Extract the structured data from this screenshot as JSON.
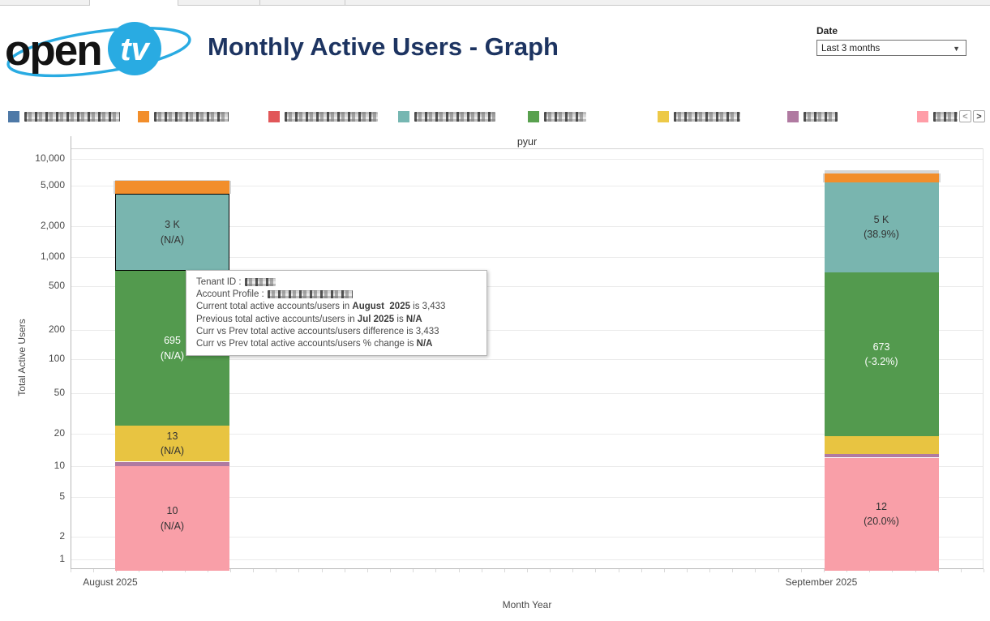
{
  "header": {
    "logo": {
      "text_open": "open",
      "text_tv": "tv"
    },
    "title": "Monthly Active Users - Graph",
    "date_filter": {
      "label": "Date",
      "value": "Last 3 months"
    }
  },
  "legend": {
    "items": [
      {
        "series": "blue",
        "color": "#4e79a7",
        "redacted_label": true,
        "label_width": 118
      },
      {
        "series": "orange",
        "color": "#f28e2b",
        "redacted_label": true,
        "label_width": 92
      },
      {
        "series": "red",
        "color": "#e15759",
        "redacted_label": true,
        "label_width": 115
      },
      {
        "series": "teal",
        "color": "#76b7b2",
        "redacted_label": true,
        "label_width": 100
      },
      {
        "series": "green",
        "color": "#59a14f",
        "redacted_label": true,
        "label_width": 52
      },
      {
        "series": "yellow",
        "color": "#edc948",
        "redacted_label": true,
        "label_width": 82
      },
      {
        "series": "purple",
        "color": "#b07aa1",
        "redacted_label": true,
        "label_width": 42
      },
      {
        "series": "pink",
        "color": "#ff9da7",
        "redacted_label": true,
        "label_width": 30
      }
    ],
    "prev_icon": "<",
    "next_icon": ">"
  },
  "chart_data": {
    "type": "bar",
    "stacked": true,
    "y_scale": "log",
    "grid": true,
    "title": "pyur",
    "xlabel": "Month Year",
    "ylabel": "Total Active Users",
    "ylim": [
      1,
      10000
    ],
    "y_ticks": [
      {
        "value": 1,
        "label": "1"
      },
      {
        "value": 2,
        "label": "2"
      },
      {
        "value": 5,
        "label": "5"
      },
      {
        "value": 10,
        "label": "10"
      },
      {
        "value": 20,
        "label": "20"
      },
      {
        "value": 50,
        "label": "50"
      },
      {
        "value": 100,
        "label": "100"
      },
      {
        "value": 200,
        "label": "200"
      },
      {
        "value": 500,
        "label": "500"
      },
      {
        "value": 1000,
        "label": "1,000"
      },
      {
        "value": 2000,
        "label": "2,000"
      },
      {
        "value": 5000,
        "label": "5,000"
      },
      {
        "value": 10000,
        "label": "10,000"
      }
    ],
    "categories": [
      "August 2025",
      "September 2025"
    ],
    "bars": [
      {
        "category": "August 2025",
        "segments": [
          {
            "series": "pink",
            "color": "#f99fa8",
            "value": 10,
            "label_lines": [
              "10",
              "(N/A)"
            ],
            "label_color": "#333"
          },
          {
            "series": "purple",
            "color": "#b07aa1",
            "value": 1
          },
          {
            "series": "yellow",
            "color": "#e8c441",
            "value": 13,
            "label_lines": [
              "13",
              "(N/A)"
            ],
            "label_color": "#333"
          },
          {
            "series": "green",
            "color": "#539a4e",
            "value": 695,
            "label_lines": [
              "695",
              "(N/A)"
            ],
            "label_color": "#ffffff"
          },
          {
            "series": "teal",
            "color": "#79b5af",
            "value": 3433,
            "label_lines": [
              "3 K",
              "(N/A)"
            ],
            "label_color": "#333",
            "highlighted": true
          },
          {
            "series": "orange",
            "color": "#f28e2b",
            "value": 1500
          },
          {
            "series": "gray",
            "color": "#d6d6d6",
            "value": 150
          }
        ]
      },
      {
        "category": "September 2025",
        "segments": [
          {
            "series": "pink",
            "color": "#f99fa8",
            "value": 12,
            "label_lines": [
              "12",
              "(20.0%)"
            ],
            "label_color": "#333"
          },
          {
            "series": "purple",
            "color": "#b07aa1",
            "value": 1
          },
          {
            "series": "yellow",
            "color": "#e8c441",
            "value": 6
          },
          {
            "series": "green",
            "color": "#539a4e",
            "value": 673,
            "label_lines": [
              "673",
              "(-3.2%)"
            ],
            "label_color": "#ffffff"
          },
          {
            "series": "teal",
            "color": "#79b5af",
            "value": 4768,
            "label_lines": [
              "5 K",
              "(38.9%)"
            ],
            "label_color": "#333"
          },
          {
            "series": "orange",
            "color": "#f28e2b",
            "value": 1400
          },
          {
            "series": "gray",
            "color": "#d6d6d6",
            "value": 600
          }
        ]
      }
    ]
  },
  "tooltip": {
    "lines": [
      {
        "parts": [
          {
            "t": "Tenant ID : "
          }
        ],
        "redacted_width": 38
      },
      {
        "parts": [
          {
            "t": "Account Profile : "
          }
        ],
        "redacted_width": 105
      },
      {
        "parts": [
          {
            "t": "Current total active accounts/users in "
          },
          {
            "t": "August  2025",
            "b": true
          },
          {
            "t": " is 3,433"
          }
        ]
      },
      {
        "parts": [
          {
            "t": "Previous total active accounts/users in "
          },
          {
            "t": "Jul 2025",
            "b": true
          },
          {
            "t": " is "
          },
          {
            "t": "N/A",
            "b": true
          }
        ]
      },
      {
        "parts": [
          {
            "t": "Curr vs Prev total active accounts/users difference is 3,433"
          }
        ]
      },
      {
        "parts": [
          {
            "t": "Curr vs Prev total active accounts/users % change is "
          },
          {
            "t": "N/A",
            "b": true
          }
        ]
      }
    ]
  }
}
